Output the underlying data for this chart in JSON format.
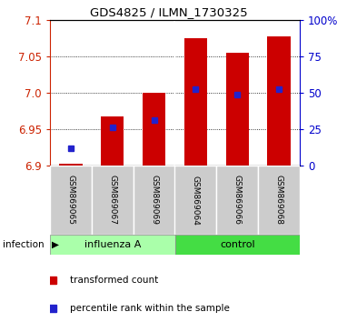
{
  "title": "GDS4825 / ILMN_1730325",
  "samples": [
    "GSM869065",
    "GSM869067",
    "GSM869069",
    "GSM869064",
    "GSM869066",
    "GSM869068"
  ],
  "red_values": [
    6.902,
    6.968,
    7.0,
    7.075,
    7.055,
    7.078
  ],
  "blue_values": [
    6.924,
    6.953,
    6.963,
    7.005,
    6.997,
    7.005
  ],
  "ylim_left": [
    6.9,
    7.1
  ],
  "yticks_left": [
    6.9,
    6.95,
    7.0,
    7.05,
    7.1
  ],
  "yticks_right": [
    0,
    25,
    50,
    75,
    100
  ],
  "base_value": 6.9,
  "influenza_color": "#aaffaa",
  "control_color": "#44dd44",
  "group_label": "infection",
  "bar_color": "#cc0000",
  "blue_color": "#2222cc",
  "bar_width": 0.55,
  "tick_label_color_left": "#cc2200",
  "tick_label_color_right": "#0000cc",
  "legend_red_label": "transformed count",
  "legend_blue_label": "percentile rank within the sample",
  "xticklabel_color": "#222222",
  "gray_box_color": "#cccccc",
  "gray_sep_color": "#aaaaaa"
}
